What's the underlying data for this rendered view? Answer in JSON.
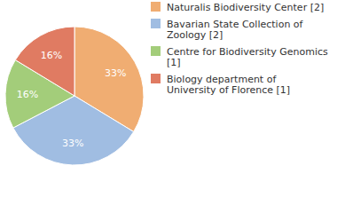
{
  "chart_data": {
    "type": "pie",
    "categories": [
      "Naturalis Biodiversity Center [2]",
      "Bavarian State Collection of Zoology [2]",
      "Centre for Biodiversity Genomics [1]",
      "Biology department of University of Florence [1]"
    ],
    "values": [
      33,
      33,
      16,
      16
    ],
    "value_labels": [
      "33%",
      "33%",
      "16%",
      "16%"
    ],
    "colors": [
      "#f0ad72",
      "#a0bde2",
      "#a3cd7a",
      "#e07b62"
    ],
    "data_labels": true,
    "legend": "top-right"
  }
}
